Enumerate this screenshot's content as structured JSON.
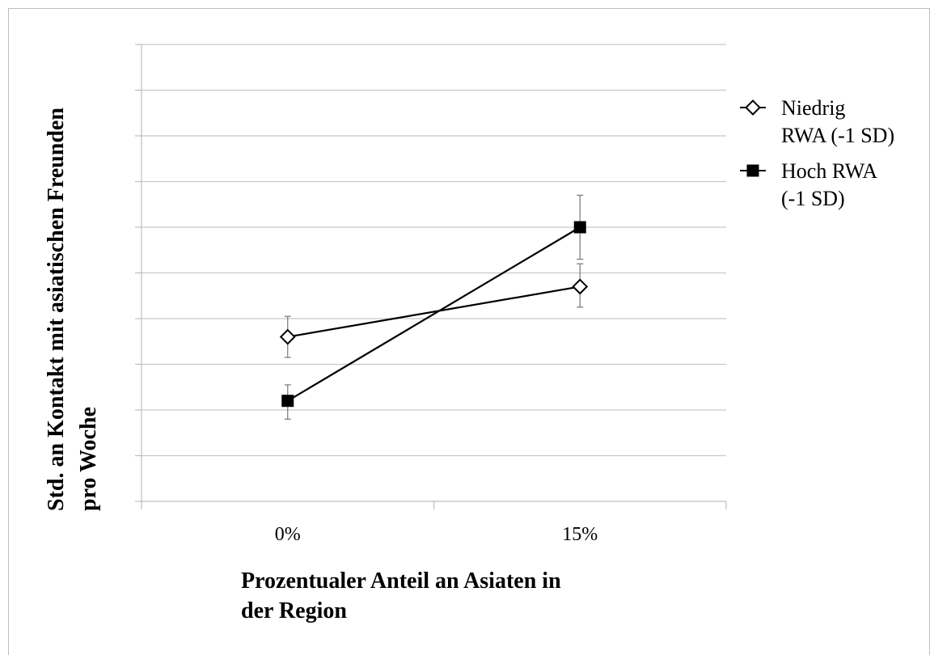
{
  "chart_data": {
    "type": "line",
    "title": "",
    "xlabel_lines": [
      "Prozentualer Anteil an Asiaten in",
      "der Region"
    ],
    "ylabel_lines": [
      "Std. an Kontakt mit asiatischen Freunden",
      "pro Woche"
    ],
    "categories": [
      "0%",
      "15%"
    ],
    "ylim": [
      0,
      10
    ],
    "grid": true,
    "y_tick_labels_shown": false,
    "legend_position": "right",
    "series": [
      {
        "name_lines": [
          "Niedrig",
          "RWA (-1 SD)"
        ],
        "marker": "diamond-open",
        "values": [
          3.6,
          4.7
        ],
        "error_low": [
          0.45,
          0.45
        ],
        "error_high": [
          0.45,
          0.5
        ]
      },
      {
        "name_lines": [
          "Hoch RWA",
          "(-1 SD)"
        ],
        "marker": "square-filled",
        "values": [
          2.2,
          6.0
        ],
        "error_low": [
          0.4,
          0.7
        ],
        "error_high": [
          0.35,
          0.7
        ]
      }
    ]
  }
}
